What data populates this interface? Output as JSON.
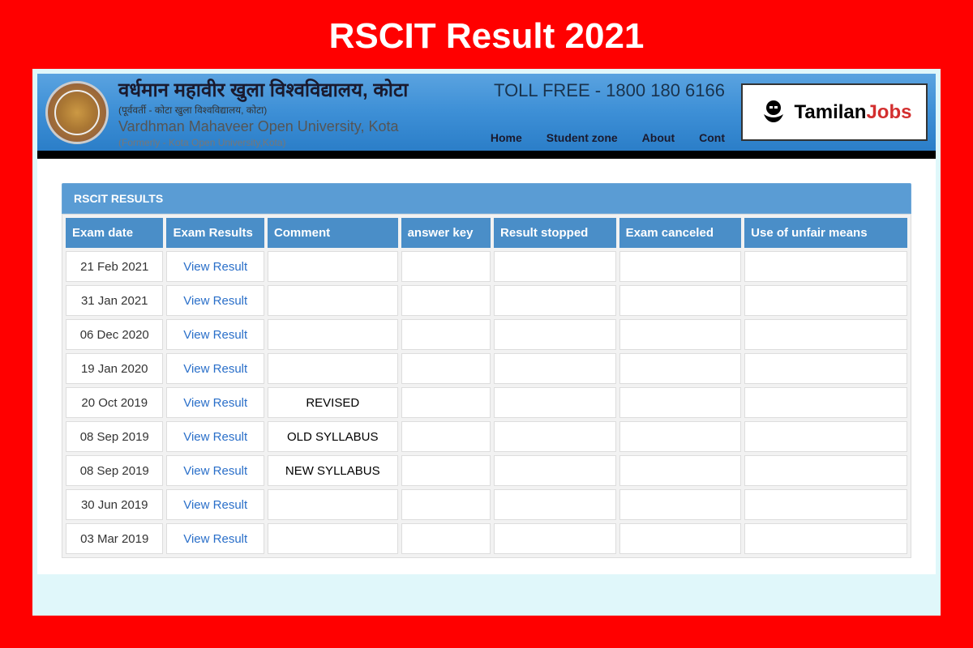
{
  "page_title": "RSCIT Result 2021",
  "colors": {
    "page_bg": "#ff0000",
    "inner_bg": "#e0f7fa",
    "header_grad_top": "#5aa3e0",
    "header_grad_bot": "#2b7ec8",
    "panel_header": "#5a9cd4",
    "th_bg": "#4a8ec8",
    "link": "#2a6fc9",
    "title_color": "#ffffff"
  },
  "university": {
    "hindi": "वर्धमान महावीर खुला विश्वविद्यालय, कोटा",
    "sub_hindi": "(पूर्ववर्ती - कोटा खुला विश्वविद्यालय, कोटा)",
    "english": "Vardhman Mahaveer Open University, Kota",
    "formerly": "(Formerly - Kota Open University,Kota)"
  },
  "toll_free": "TOLL FREE - 1800 180 6166",
  "nav": {
    "home": "Home",
    "student_zone": "Student zone",
    "about": "About",
    "contact": "Cont"
  },
  "brand": {
    "part1": "Tamilan",
    "part2": "Jobs"
  },
  "panel_title": "RSCIT RESULTS",
  "table": {
    "columns": [
      "Exam date",
      "Exam Results",
      "Comment",
      "answer key",
      "Result stopped",
      "Exam canceled",
      "Use of unfair means"
    ],
    "link_label": "View Result",
    "rows": [
      {
        "date": "21 Feb 2021",
        "comment": ""
      },
      {
        "date": "31 Jan 2021",
        "comment": ""
      },
      {
        "date": "06 Dec 2020",
        "comment": ""
      },
      {
        "date": "19 Jan 2020",
        "comment": ""
      },
      {
        "date": "20 Oct 2019",
        "comment": "REVISED"
      },
      {
        "date": "08 Sep 2019",
        "comment": "OLD SYLLABUS"
      },
      {
        "date": "08 Sep 2019",
        "comment": "NEW SYLLABUS"
      },
      {
        "date": "30 Jun 2019",
        "comment": ""
      },
      {
        "date": "03 Mar 2019",
        "comment": ""
      }
    ]
  }
}
